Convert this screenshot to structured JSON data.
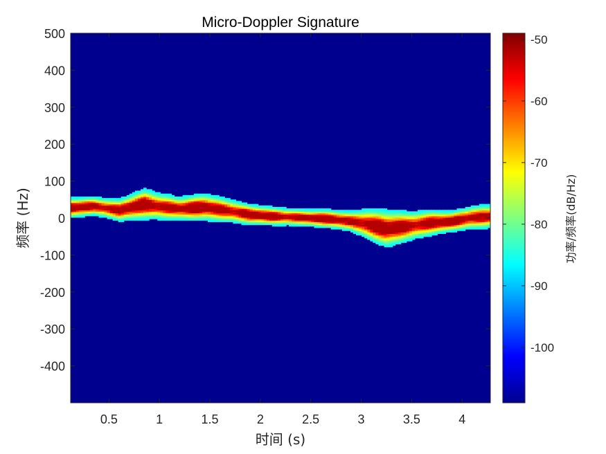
{
  "chart_data": {
    "type": "heatmap",
    "title": "Micro-Doppler Signature",
    "xlabel": "时间 (s)",
    "ylabel": "频率 (Hz)",
    "colorbar_label": "功率/频率(dB/Hz)",
    "colormap": "jet",
    "xlim": [
      0.12,
      4.28
    ],
    "ylim": [
      -500,
      500
    ],
    "clim": [
      -109,
      -49
    ],
    "x_ticks": [
      0.5,
      1,
      1.5,
      2,
      2.5,
      3,
      3.5,
      4
    ],
    "x_tick_labels": [
      "0.5",
      "1",
      "1.5",
      "2",
      "2.5",
      "3",
      "3.5",
      "4"
    ],
    "y_ticks": [
      500,
      400,
      300,
      200,
      100,
      0,
      -100,
      -200,
      -300,
      -400
    ],
    "y_tick_labels": [
      "500",
      "400",
      "300",
      "200",
      "100",
      "0",
      "-100",
      "-200",
      "-300",
      "-400"
    ],
    "colorbar_ticks": [
      -50,
      -60,
      -70,
      -80,
      -90,
      -100
    ],
    "colorbar_tick_labels": [
      "-50",
      "-60",
      "-70",
      "-80",
      "-90",
      "-100"
    ],
    "background_level_db": -109,
    "peak_level_db": -52,
    "ridge": {
      "time_s": [
        0.12,
        0.35,
        0.6,
        0.85,
        1.0,
        1.2,
        1.45,
        1.7,
        1.9,
        2.1,
        2.4,
        2.7,
        2.9,
        3.05,
        3.25,
        3.45,
        3.7,
        3.9,
        4.1,
        4.28
      ],
      "freq_hz": [
        28,
        33,
        22,
        38,
        32,
        26,
        30,
        20,
        10,
        6,
        2,
        -2,
        -8,
        -15,
        -28,
        -22,
        -12,
        -8,
        2,
        5
      ],
      "halfwidth_hz": [
        12,
        11,
        13,
        18,
        16,
        14,
        16,
        14,
        12,
        11,
        10,
        11,
        12,
        18,
        22,
        18,
        15,
        12,
        14,
        14
      ]
    }
  }
}
